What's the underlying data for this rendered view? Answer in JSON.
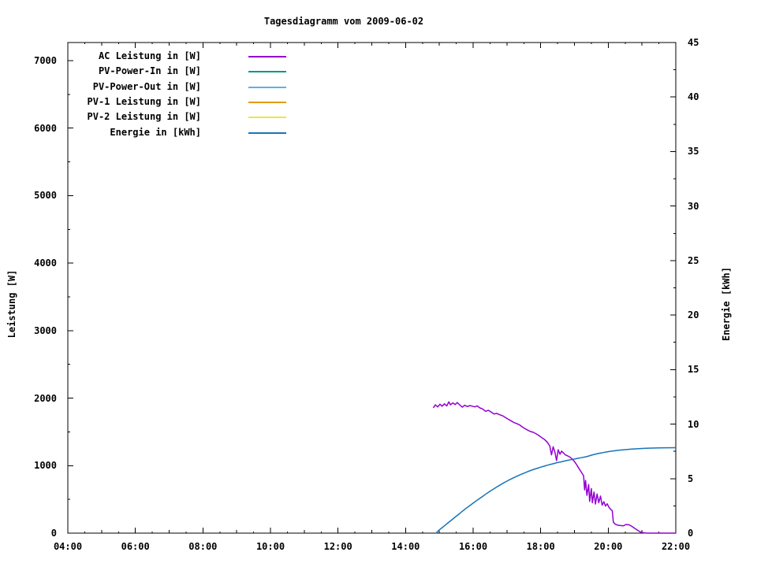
{
  "title": "Tagesdiagramm vom 2009-06-02",
  "chart_data": {
    "type": "line",
    "title": "Tagesdiagramm vom 2009-06-02",
    "grid": false,
    "legend_position": "top-left-inside",
    "x_axis": {
      "unit": "time",
      "range_hours": [
        4,
        22
      ],
      "major_tick_hours": [
        4,
        6,
        8,
        10,
        12,
        14,
        16,
        18,
        20,
        22
      ],
      "major_tick_labels": [
        "04:00",
        "06:00",
        "08:00",
        "10:00",
        "12:00",
        "14:00",
        "16:00",
        "18:00",
        "20:00",
        "22:00"
      ],
      "mid_tick_step_hours": 1,
      "minor_tick_step_hours": 0.5
    },
    "y_left": {
      "label": "Leistung [W]",
      "range": [
        0,
        7268
      ],
      "major_ticks": [
        0,
        1000,
        2000,
        3000,
        4000,
        5000,
        6000,
        7000
      ],
      "minor_tick_step": 500
    },
    "y_right": {
      "label": "Energie [kWh]",
      "range": [
        0,
        45
      ],
      "major_ticks": [
        0,
        5,
        10,
        15,
        20,
        25,
        30,
        35,
        40,
        45
      ],
      "minor_tick_step": 2.5
    },
    "legend": [
      {
        "label": "AC Leistung in [W]",
        "color": "#9400d3"
      },
      {
        "label": "PV-Power-In in [W]",
        "color": "#009980"
      },
      {
        "label": "PV-Power-Out in [W]",
        "color": "#58b4e6"
      },
      {
        "label": "PV-1 Leistung in [W]",
        "color": "#e09c00"
      },
      {
        "label": "PV-2 Leistung in [W]",
        "color": "#f0e442"
      },
      {
        "label": "Energie in [kWh]",
        "color": "#1874b8"
      }
    ],
    "series": [
      {
        "name": "AC Leistung in [W]",
        "axis": "left",
        "color": "#9400d3",
        "unit": "W",
        "points": [
          [
            14.82,
            1855
          ],
          [
            14.88,
            1900
          ],
          [
            14.95,
            1870
          ],
          [
            15.02,
            1910
          ],
          [
            15.08,
            1880
          ],
          [
            15.15,
            1915
          ],
          [
            15.22,
            1885
          ],
          [
            15.28,
            1945
          ],
          [
            15.33,
            1900
          ],
          [
            15.4,
            1930
          ],
          [
            15.47,
            1905
          ],
          [
            15.53,
            1935
          ],
          [
            15.6,
            1900
          ],
          [
            15.68,
            1865
          ],
          [
            15.75,
            1895
          ],
          [
            15.83,
            1875
          ],
          [
            15.9,
            1890
          ],
          [
            15.98,
            1880
          ],
          [
            16.05,
            1870
          ],
          [
            16.12,
            1885
          ],
          [
            16.2,
            1855
          ],
          [
            16.28,
            1840
          ],
          [
            16.37,
            1805
          ],
          [
            16.45,
            1820
          ],
          [
            16.53,
            1795
          ],
          [
            16.62,
            1765
          ],
          [
            16.7,
            1775
          ],
          [
            16.78,
            1755
          ],
          [
            16.87,
            1740
          ],
          [
            16.95,
            1715
          ],
          [
            17.03,
            1690
          ],
          [
            17.12,
            1665
          ],
          [
            17.2,
            1640
          ],
          [
            17.28,
            1625
          ],
          [
            17.37,
            1605
          ],
          [
            17.45,
            1575
          ],
          [
            17.53,
            1550
          ],
          [
            17.62,
            1525
          ],
          [
            17.7,
            1505
          ],
          [
            17.78,
            1495
          ],
          [
            17.87,
            1470
          ],
          [
            17.95,
            1445
          ],
          [
            18.03,
            1415
          ],
          [
            18.12,
            1385
          ],
          [
            18.2,
            1345
          ],
          [
            18.27,
            1290
          ],
          [
            18.32,
            1160
          ],
          [
            18.37,
            1280
          ],
          [
            18.42,
            1200
          ],
          [
            18.47,
            1075
          ],
          [
            18.52,
            1235
          ],
          [
            18.57,
            1170
          ],
          [
            18.62,
            1215
          ],
          [
            18.68,
            1185
          ],
          [
            18.73,
            1160
          ],
          [
            18.8,
            1145
          ],
          [
            18.87,
            1125
          ],
          [
            18.93,
            1100
          ],
          [
            19.0,
            1060
          ],
          [
            19.07,
            1010
          ],
          [
            19.13,
            960
          ],
          [
            19.2,
            905
          ],
          [
            19.27,
            850
          ],
          [
            19.3,
            640
          ],
          [
            19.33,
            780
          ],
          [
            19.37,
            560
          ],
          [
            19.42,
            720
          ],
          [
            19.45,
            470
          ],
          [
            19.5,
            660
          ],
          [
            19.53,
            450
          ],
          [
            19.58,
            610
          ],
          [
            19.62,
            430
          ],
          [
            19.67,
            580
          ],
          [
            19.72,
            450
          ],
          [
            19.77,
            550
          ],
          [
            19.82,
            415
          ],
          [
            19.87,
            465
          ],
          [
            19.92,
            400
          ],
          [
            19.97,
            435
          ],
          [
            20.02,
            385
          ],
          [
            20.07,
            355
          ],
          [
            20.12,
            330
          ],
          [
            20.15,
            165
          ],
          [
            20.2,
            135
          ],
          [
            20.28,
            118
          ],
          [
            20.37,
            112
          ],
          [
            20.45,
            108
          ],
          [
            20.53,
            128
          ],
          [
            20.62,
            122
          ],
          [
            20.7,
            100
          ],
          [
            20.78,
            72
          ],
          [
            20.87,
            42
          ],
          [
            20.95,
            18
          ],
          [
            21.05,
            6
          ],
          [
            21.15,
            0
          ],
          [
            22.0,
            0
          ]
        ]
      },
      {
        "name": "PV-Power-In in [W]",
        "axis": "left",
        "color": "#009980",
        "unit": "W",
        "points": []
      },
      {
        "name": "PV-Power-Out in [W]",
        "axis": "left",
        "color": "#58b4e6",
        "unit": "W",
        "points": []
      },
      {
        "name": "PV-1 Leistung in [W]",
        "axis": "left",
        "color": "#e09c00",
        "unit": "W",
        "points": []
      },
      {
        "name": "PV-2 Leistung in [W]",
        "axis": "left",
        "color": "#f0e442",
        "unit": "W",
        "points": []
      },
      {
        "name": "Energie in [kWh]",
        "axis": "right",
        "color": "#1874b8",
        "unit": "kWh",
        "points": [
          [
            14.9,
            0
          ],
          [
            15.0,
            0.3
          ],
          [
            15.1,
            0.55
          ],
          [
            15.2,
            0.8
          ],
          [
            15.3,
            1.05
          ],
          [
            15.4,
            1.3
          ],
          [
            15.5,
            1.55
          ],
          [
            15.6,
            1.8
          ],
          [
            15.7,
            2.05
          ],
          [
            15.8,
            2.3
          ],
          [
            15.9,
            2.52
          ],
          [
            16.0,
            2.75
          ],
          [
            16.1,
            2.98
          ],
          [
            16.2,
            3.2
          ],
          [
            16.3,
            3.42
          ],
          [
            16.4,
            3.63
          ],
          [
            16.5,
            3.84
          ],
          [
            16.6,
            4.04
          ],
          [
            16.7,
            4.23
          ],
          [
            16.8,
            4.42
          ],
          [
            16.9,
            4.6
          ],
          [
            17.0,
            4.77
          ],
          [
            17.1,
            4.93
          ],
          [
            17.2,
            5.08
          ],
          [
            17.3,
            5.23
          ],
          [
            17.4,
            5.37
          ],
          [
            17.5,
            5.5
          ],
          [
            17.6,
            5.62
          ],
          [
            17.7,
            5.74
          ],
          [
            17.8,
            5.85
          ],
          [
            17.9,
            5.95
          ],
          [
            18.0,
            6.05
          ],
          [
            18.1,
            6.14
          ],
          [
            18.2,
            6.23
          ],
          [
            18.3,
            6.31
          ],
          [
            18.4,
            6.39
          ],
          [
            18.5,
            6.47
          ],
          [
            18.6,
            6.54
          ],
          [
            18.7,
            6.61
          ],
          [
            18.8,
            6.68
          ],
          [
            18.9,
            6.74
          ],
          [
            19.0,
            6.8
          ],
          [
            19.1,
            6.86
          ],
          [
            19.2,
            6.92
          ],
          [
            19.3,
            6.98
          ],
          [
            19.4,
            7.05
          ],
          [
            19.5,
            7.15
          ],
          [
            19.7,
            7.3
          ],
          [
            19.9,
            7.42
          ],
          [
            20.1,
            7.52
          ],
          [
            20.3,
            7.6
          ],
          [
            20.5,
            7.66
          ],
          [
            20.7,
            7.71
          ],
          [
            20.9,
            7.75
          ],
          [
            21.1,
            7.78
          ],
          [
            21.3,
            7.8
          ],
          [
            21.5,
            7.82
          ],
          [
            21.7,
            7.83
          ],
          [
            22.0,
            7.84
          ]
        ]
      }
    ]
  }
}
